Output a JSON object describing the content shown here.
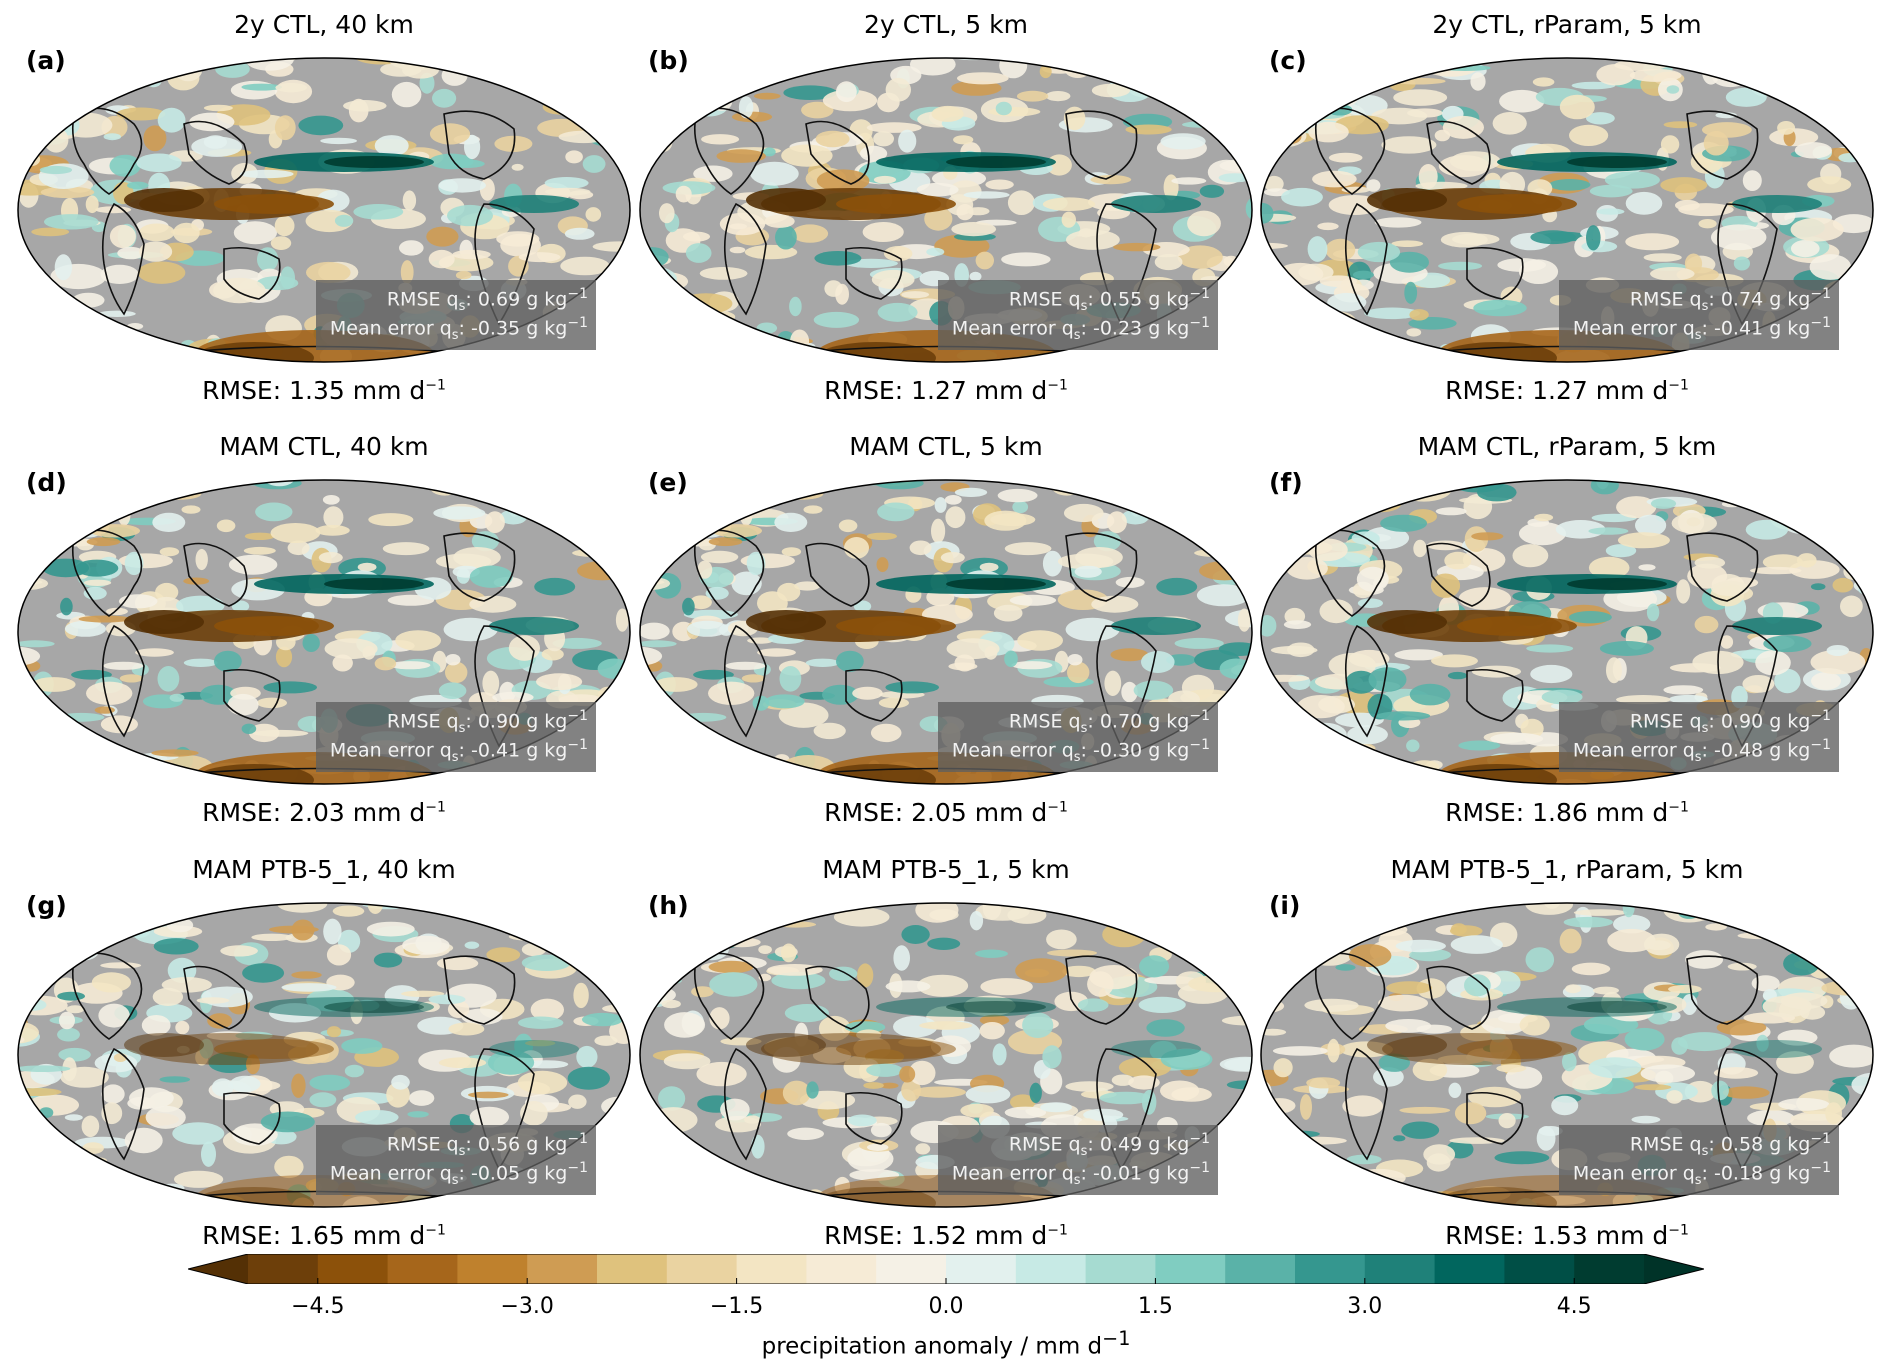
{
  "panels": [
    {
      "letter": "(a)",
      "title": "2y CTL, 40 km",
      "stats": {
        "rmse_qs_pre": "RMSE q",
        "rmse_qs_sub": "s",
        "rmse_qs_mid": ": 0.69 g kg",
        "rmse_qs_sup": "−1",
        "mean_qs_pre": "Mean error q",
        "mean_qs_sub": "s",
        "mean_qs_mid": ": -0.35 g kg",
        "mean_qs_sup": "−1"
      },
      "rmse": {
        "pre": "RMSE: 1.35 mm d",
        "sup": "−1"
      }
    },
    {
      "letter": "(b)",
      "title": "2y CTL, 5 km",
      "stats": {
        "rmse_qs_pre": "RMSE q",
        "rmse_qs_sub": "s",
        "rmse_qs_mid": ": 0.55 g kg",
        "rmse_qs_sup": "−1",
        "mean_qs_pre": "Mean error q",
        "mean_qs_sub": "s",
        "mean_qs_mid": ": -0.23 g kg",
        "mean_qs_sup": "−1"
      },
      "rmse": {
        "pre": "RMSE: 1.27 mm d",
        "sup": "−1"
      }
    },
    {
      "letter": "(c)",
      "title": "2y CTL, rParam, 5 km",
      "stats": {
        "rmse_qs_pre": "RMSE q",
        "rmse_qs_sub": "s",
        "rmse_qs_mid": ": 0.74 g kg",
        "rmse_qs_sup": "−1",
        "mean_qs_pre": "Mean error q",
        "mean_qs_sub": "s",
        "mean_qs_mid": ": -0.41 g kg",
        "mean_qs_sup": "−1"
      },
      "rmse": {
        "pre": "RMSE: 1.27 mm d",
        "sup": "−1"
      }
    },
    {
      "letter": "(d)",
      "title": "MAM CTL, 40 km",
      "stats": {
        "rmse_qs_pre": "RMSE q",
        "rmse_qs_sub": "s",
        "rmse_qs_mid": ": 0.90 g kg",
        "rmse_qs_sup": "−1",
        "mean_qs_pre": "Mean error q",
        "mean_qs_sub": "s",
        "mean_qs_mid": ": -0.41 g kg",
        "mean_qs_sup": "−1"
      },
      "rmse": {
        "pre": "RMSE: 2.03 mm d",
        "sup": "−1"
      }
    },
    {
      "letter": "(e)",
      "title": "MAM CTL, 5 km",
      "stats": {
        "rmse_qs_pre": "RMSE q",
        "rmse_qs_sub": "s",
        "rmse_qs_mid": ": 0.70 g kg",
        "rmse_qs_sup": "−1",
        "mean_qs_pre": "Mean error q",
        "mean_qs_sub": "s",
        "mean_qs_mid": ": -0.30 g kg",
        "mean_qs_sup": "−1"
      },
      "rmse": {
        "pre": "RMSE: 2.05 mm d",
        "sup": "−1"
      }
    },
    {
      "letter": "(f)",
      "title": "MAM CTL, rParam, 5 km",
      "stats": {
        "rmse_qs_pre": "RMSE q",
        "rmse_qs_sub": "s",
        "rmse_qs_mid": ": 0.90 g kg",
        "rmse_qs_sup": "−1",
        "mean_qs_pre": "Mean error q",
        "mean_qs_sub": "s",
        "mean_qs_mid": ": -0.48 g kg",
        "mean_qs_sup": "−1"
      },
      "rmse": {
        "pre": "RMSE: 1.86 mm d",
        "sup": "−1"
      }
    },
    {
      "letter": "(g)",
      "title": "MAM PTB-5_1, 40 km",
      "stats": {
        "rmse_qs_pre": "RMSE q",
        "rmse_qs_sub": "s",
        "rmse_qs_mid": ": 0.56 g kg",
        "rmse_qs_sup": "−1",
        "mean_qs_pre": "Mean error q",
        "mean_qs_sub": "s",
        "mean_qs_mid": ": -0.05 g kg",
        "mean_qs_sup": "−1"
      },
      "rmse": {
        "pre": "RMSE: 1.65 mm d",
        "sup": "−1"
      }
    },
    {
      "letter": "(h)",
      "title": "MAM PTB-5_1, 5 km",
      "stats": {
        "rmse_qs_pre": "RMSE q",
        "rmse_qs_sub": "s",
        "rmse_qs_mid": ": 0.49 g kg",
        "rmse_qs_sup": "−1",
        "mean_qs_pre": "Mean error q",
        "mean_qs_sub": "s",
        "mean_qs_mid": ": -0.01 g kg",
        "mean_qs_sup": "−1"
      },
      "rmse": {
        "pre": "RMSE: 1.52 mm d",
        "sup": "−1"
      }
    },
    {
      "letter": "(i)",
      "title": "MAM PTB-5_1, rParam, 5 km",
      "stats": {
        "rmse_qs_pre": "RMSE q",
        "rmse_qs_sub": "s",
        "rmse_qs_mid": ": 0.58 g kg",
        "rmse_qs_sup": "−1",
        "mean_qs_pre": "Mean error q",
        "mean_qs_sub": "s",
        "mean_qs_mid": ": -0.18 g kg",
        "mean_qs_sup": "−1"
      },
      "rmse": {
        "pre": "RMSE: 1.53 mm d",
        "sup": "−1"
      }
    }
  ],
  "colorbar": {
    "label_pre": "precipitation anomaly / mm d",
    "label_sup": "−1",
    "ticks": [
      "−4.5",
      "−3.0",
      "−1.5",
      "0.0",
      "1.5",
      "3.0",
      "4.5"
    ],
    "tick_values": [
      -4.5,
      -3.0,
      -1.5,
      0.0,
      1.5,
      3.0,
      4.5
    ],
    "min": -5.5,
    "max": 5.5,
    "step": 0.5,
    "colors": [
      "#543005",
      "#6d3f0a",
      "#8c510a",
      "#a6661b",
      "#bf812d",
      "#cf9c53",
      "#dfc27d",
      "#ead3a1",
      "#f3e5c3",
      "#f6ebd6",
      "#f5f1e6",
      "#e3f1ee",
      "#c7eae5",
      "#a6dbd1",
      "#80cdc1",
      "#5ab2a8",
      "#35978f",
      "#1f8179",
      "#01665e",
      "#004f46",
      "#003c30",
      "#003328"
    ]
  },
  "map_colors": {
    "land_gray": "#9a9a9a",
    "ocean_gray": "#a7a7a7",
    "neutral": "#f3ead4",
    "coast": "#111111"
  }
}
